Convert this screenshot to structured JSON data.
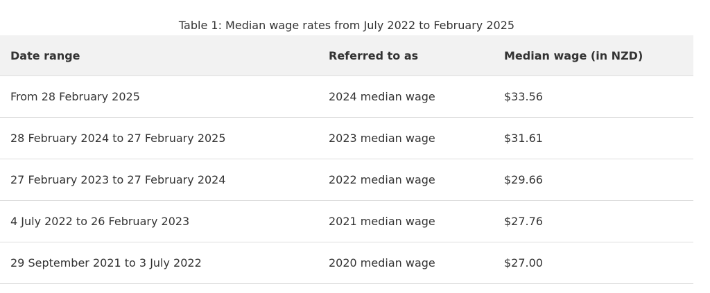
{
  "table": {
    "caption": "Table 1: Median wage rates from July 2022 to February 2025",
    "header": [
      "Date range",
      "Referred to as",
      "Median wage (in NZD)"
    ],
    "rows": [
      [
        "From 28 February 2025",
        "2024 median wage",
        "$33.56"
      ],
      [
        "28 February 2024 to 27 February 2025",
        "2023 median wage",
        "$31.61"
      ],
      [
        "27 February 2023 to 27 February 2024",
        "2022 median wage",
        "$29.66"
      ],
      [
        "4 July 2022 to 26 February 2023",
        "2021 median wage",
        "$27.76"
      ],
      [
        "29 September 2021 to 3 July 2022",
        "2020 median wage",
        "$27.00"
      ]
    ]
  }
}
